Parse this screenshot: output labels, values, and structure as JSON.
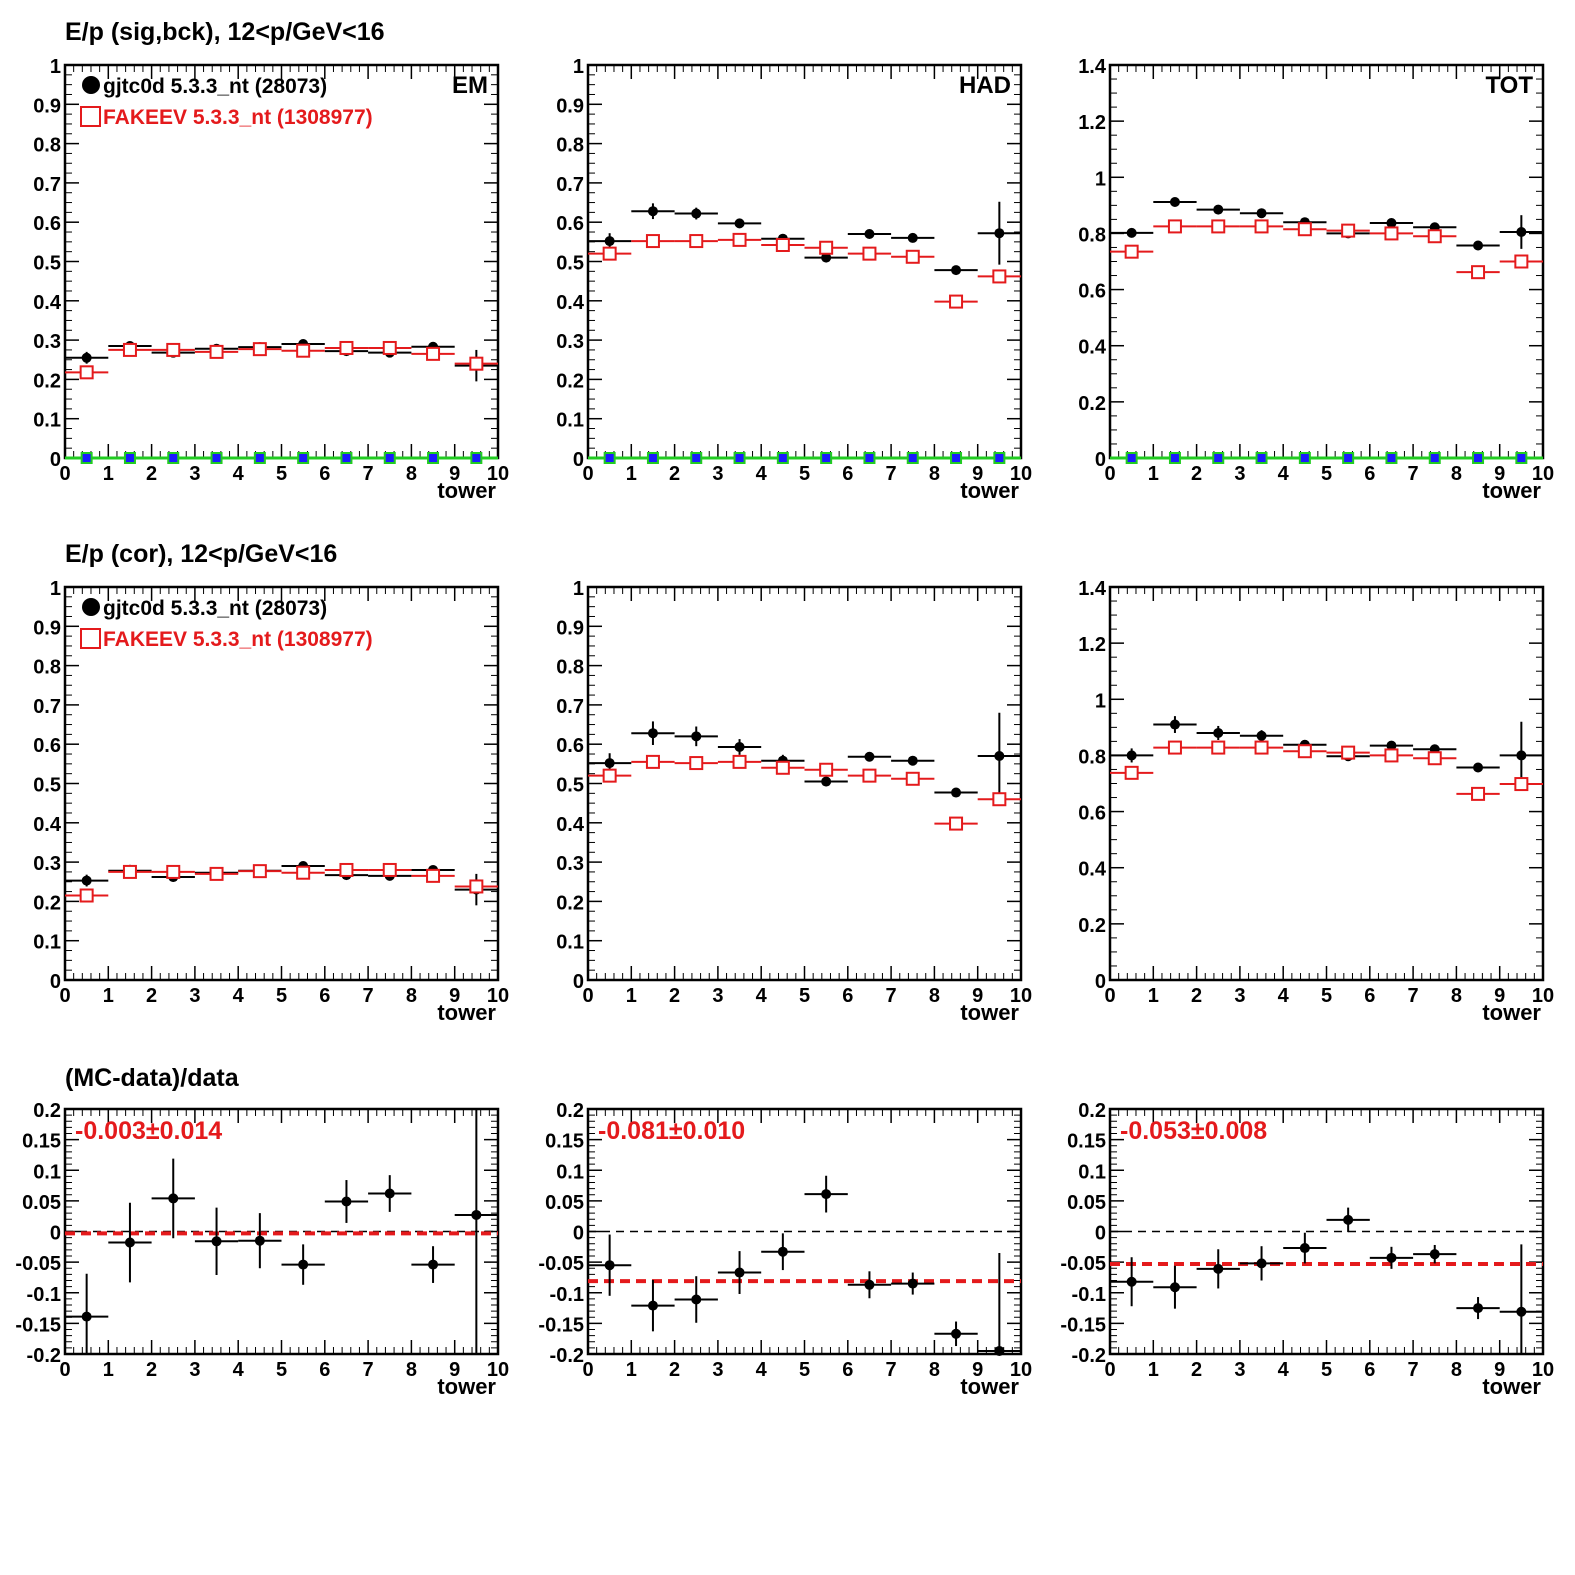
{
  "row_titles": [
    "E/p (sig,bck), 12<p/GeV<16",
    "E/p (cor), 12<p/GeV<16",
    "(MC-data)/data"
  ],
  "legend": [
    {
      "label": "gjtc0d 5.3.3_nt (28073)",
      "color": "#000000",
      "marker": "filled-circle"
    },
    {
      "label": "FAKEEV 5.3.3_nt (1308977)",
      "color": "#e41a1c",
      "marker": "open-square"
    }
  ],
  "colors": {
    "data": "#000000",
    "mc": "#e41a1c",
    "bck_line": "#22cc22",
    "bck_marker": "#1a1aff"
  },
  "chart_data": [
    {
      "type": "scatter",
      "panel": "EM-sig-bck",
      "corner_label": "EM",
      "xlabel": "tower",
      "xlim": [
        0,
        10
      ],
      "ylim": [
        0,
        1
      ],
      "x": [
        0.5,
        1.5,
        2.5,
        3.5,
        4.5,
        5.5,
        6.5,
        7.5,
        8.5,
        9.5
      ],
      "series": [
        {
          "name": "gjtc0d 5.3.3_nt (28073)",
          "values": [
            0.255,
            0.285,
            0.268,
            0.278,
            0.282,
            0.29,
            0.272,
            0.268,
            0.283,
            0.235
          ],
          "errors": [
            0.015,
            0.008,
            0.008,
            0.007,
            0.007,
            0.007,
            0.007,
            0.007,
            0.008,
            0.04
          ]
        },
        {
          "name": "FAKEEV 5.3.3_nt (1308977)",
          "values": [
            0.218,
            0.275,
            0.275,
            0.27,
            0.277,
            0.273,
            0.28,
            0.28,
            0.265,
            0.24
          ],
          "errors": [
            0.003,
            0.003,
            0.003,
            0.003,
            0.003,
            0.003,
            0.003,
            0.003,
            0.003,
            0.005
          ]
        },
        {
          "values": [
            0,
            0,
            0,
            0,
            0,
            0,
            0,
            0,
            0,
            0
          ]
        }
      ]
    },
    {
      "type": "scatter",
      "panel": "HAD-sig-bck",
      "corner_label": "HAD",
      "xlabel": "tower",
      "xlim": [
        0,
        10
      ],
      "ylim": [
        0,
        1
      ],
      "x": [
        0.5,
        1.5,
        2.5,
        3.5,
        4.5,
        5.5,
        6.5,
        7.5,
        8.5,
        9.5
      ],
      "series": [
        {
          "name": "gjtc0d 5.3.3_nt (28073)",
          "values": [
            0.552,
            0.628,
            0.622,
            0.597,
            0.558,
            0.51,
            0.57,
            0.56,
            0.478,
            0.572
          ],
          "errors": [
            0.02,
            0.02,
            0.015,
            0.012,
            0.008,
            0.008,
            0.008,
            0.008,
            0.008,
            0.08
          ]
        },
        {
          "name": "FAKEEV 5.3.3_nt (1308977)",
          "values": [
            0.52,
            0.552,
            0.552,
            0.555,
            0.542,
            0.535,
            0.52,
            0.512,
            0.398,
            0.462
          ],
          "errors": [
            0.003,
            0.003,
            0.003,
            0.003,
            0.003,
            0.003,
            0.003,
            0.003,
            0.003,
            0.005
          ]
        },
        {
          "values": [
            0,
            0,
            0,
            0,
            0,
            0,
            0,
            0,
            0,
            0
          ]
        }
      ]
    },
    {
      "type": "scatter",
      "panel": "TOT-sig-bck",
      "corner_label": "TOT",
      "xlabel": "tower",
      "xlim": [
        0,
        10
      ],
      "ylim": [
        0,
        1.4
      ],
      "x": [
        0.5,
        1.5,
        2.5,
        3.5,
        4.5,
        5.5,
        6.5,
        7.5,
        8.5,
        9.5
      ],
      "series": [
        {
          "name": "gjtc0d 5.3.3_nt (28073)",
          "values": [
            0.802,
            0.912,
            0.885,
            0.872,
            0.84,
            0.8,
            0.837,
            0.822,
            0.757,
            0.805
          ],
          "errors": [
            0.015,
            0.012,
            0.01,
            0.01,
            0.008,
            0.008,
            0.008,
            0.008,
            0.008,
            0.06
          ]
        },
        {
          "name": "FAKEEV 5.3.3_nt (1308977)",
          "values": [
            0.735,
            0.825,
            0.825,
            0.825,
            0.815,
            0.81,
            0.8,
            0.79,
            0.662,
            0.7
          ],
          "errors": [
            0.004,
            0.004,
            0.004,
            0.004,
            0.004,
            0.004,
            0.004,
            0.004,
            0.004,
            0.006
          ]
        },
        {
          "values": [
            0,
            0,
            0,
            0,
            0,
            0,
            0,
            0,
            0,
            0
          ]
        }
      ]
    },
    {
      "type": "scatter",
      "panel": "EM-cor",
      "xlabel": "tower",
      "xlim": [
        0,
        10
      ],
      "ylim": [
        0,
        1
      ],
      "x": [
        0.5,
        1.5,
        2.5,
        3.5,
        4.5,
        5.5,
        6.5,
        7.5,
        8.5,
        9.5
      ],
      "series": [
        {
          "name": "gjtc0d 5.3.3_nt (28073)",
          "values": [
            0.253,
            0.278,
            0.262,
            0.273,
            0.278,
            0.29,
            0.267,
            0.265,
            0.28,
            0.23
          ],
          "errors": [
            0.015,
            0.015,
            0.012,
            0.012,
            0.012,
            0.01,
            0.01,
            0.01,
            0.01,
            0.04
          ]
        },
        {
          "name": "FAKEEV 5.3.3_nt (1308977)",
          "values": [
            0.215,
            0.275,
            0.275,
            0.27,
            0.277,
            0.273,
            0.28,
            0.28,
            0.265,
            0.238
          ],
          "errors": [
            0.003,
            0.003,
            0.003,
            0.003,
            0.003,
            0.003,
            0.003,
            0.003,
            0.003,
            0.005
          ]
        }
      ]
    },
    {
      "type": "scatter",
      "panel": "HAD-cor",
      "xlabel": "tower",
      "xlim": [
        0,
        10
      ],
      "ylim": [
        0,
        1
      ],
      "x": [
        0.5,
        1.5,
        2.5,
        3.5,
        4.5,
        5.5,
        6.5,
        7.5,
        8.5,
        9.5
      ],
      "series": [
        {
          "name": "gjtc0d 5.3.3_nt (28073)",
          "values": [
            0.552,
            0.628,
            0.62,
            0.593,
            0.558,
            0.505,
            0.568,
            0.558,
            0.477,
            0.57
          ],
          "errors": [
            0.025,
            0.03,
            0.025,
            0.02,
            0.015,
            0.012,
            0.012,
            0.01,
            0.01,
            0.11
          ]
        },
        {
          "name": "FAKEEV 5.3.3_nt (1308977)",
          "values": [
            0.52,
            0.555,
            0.552,
            0.555,
            0.54,
            0.535,
            0.52,
            0.512,
            0.398,
            0.46
          ],
          "errors": [
            0.003,
            0.003,
            0.003,
            0.003,
            0.003,
            0.003,
            0.003,
            0.003,
            0.003,
            0.005
          ]
        }
      ]
    },
    {
      "type": "scatter",
      "panel": "TOT-cor",
      "xlabel": "tower",
      "xlim": [
        0,
        10
      ],
      "ylim": [
        0,
        1.4
      ],
      "x": [
        0.5,
        1.5,
        2.5,
        3.5,
        4.5,
        5.5,
        6.5,
        7.5,
        8.5,
        9.5
      ],
      "series": [
        {
          "name": "gjtc0d 5.3.3_nt (28073)",
          "values": [
            0.8,
            0.91,
            0.88,
            0.87,
            0.838,
            0.797,
            0.835,
            0.822,
            0.757,
            0.8
          ],
          "errors": [
            0.025,
            0.03,
            0.025,
            0.02,
            0.015,
            0.01,
            0.01,
            0.01,
            0.008,
            0.12
          ]
        },
        {
          "name": "FAKEEV 5.3.3_nt (1308977)",
          "values": [
            0.738,
            0.828,
            0.828,
            0.828,
            0.815,
            0.81,
            0.8,
            0.79,
            0.663,
            0.698
          ],
          "errors": [
            0.004,
            0.004,
            0.004,
            0.004,
            0.004,
            0.004,
            0.004,
            0.004,
            0.004,
            0.006
          ]
        }
      ]
    },
    {
      "type": "scatter",
      "panel": "EM-ratio",
      "xlabel": "tower",
      "annotation": "-0.003±0.014",
      "mean": -0.003,
      "xlim": [
        0,
        10
      ],
      "ylim": [
        -0.2,
        0.2
      ],
      "x": [
        0.5,
        1.5,
        2.5,
        3.5,
        4.5,
        5.5,
        6.5,
        7.5,
        8.5,
        9.5
      ],
      "values": [
        -0.139,
        -0.018,
        0.054,
        -0.016,
        -0.015,
        -0.054,
        0.049,
        0.062,
        -0.054,
        0.027
      ],
      "errors": [
        0.07,
        0.065,
        0.065,
        0.055,
        0.045,
        0.033,
        0.035,
        0.03,
        0.03,
        0.25
      ]
    },
    {
      "type": "scatter",
      "panel": "HAD-ratio",
      "xlabel": "tower",
      "annotation": "-0.081±0.010",
      "mean": -0.081,
      "xlim": [
        0,
        10
      ],
      "ylim": [
        -0.2,
        0.2
      ],
      "x": [
        0.5,
        1.5,
        2.5,
        3.5,
        4.5,
        5.5,
        6.5,
        7.5,
        8.5,
        9.5
      ],
      "values": [
        -0.055,
        -0.121,
        -0.111,
        -0.067,
        -0.033,
        0.061,
        -0.087,
        -0.085,
        -0.167,
        -0.195
      ],
      "errors": [
        0.05,
        0.042,
        0.038,
        0.035,
        0.03,
        0.03,
        0.022,
        0.018,
        0.02,
        0.16
      ]
    },
    {
      "type": "scatter",
      "panel": "TOT-ratio",
      "xlabel": "tower",
      "annotation": "-0.053±0.008",
      "mean": -0.053,
      "xlim": [
        0,
        10
      ],
      "ylim": [
        -0.2,
        0.2
      ],
      "x": [
        0.5,
        1.5,
        2.5,
        3.5,
        4.5,
        5.5,
        6.5,
        7.5,
        8.5,
        9.5
      ],
      "values": [
        -0.082,
        -0.091,
        -0.061,
        -0.052,
        -0.027,
        0.019,
        -0.043,
        -0.037,
        -0.125,
        -0.131
      ],
      "errors": [
        0.04,
        0.035,
        0.032,
        0.028,
        0.025,
        0.02,
        0.018,
        0.015,
        0.018,
        0.11
      ]
    }
  ]
}
